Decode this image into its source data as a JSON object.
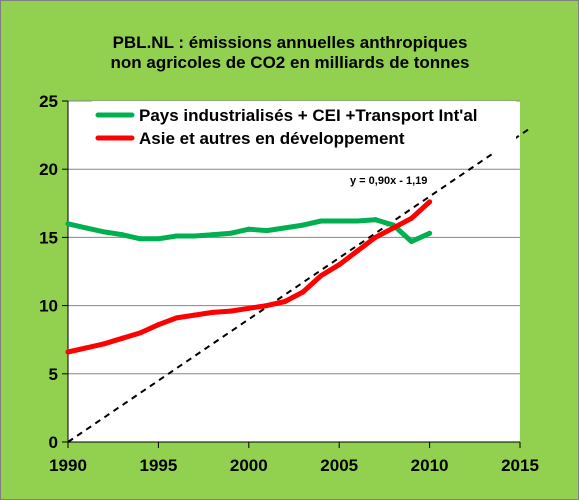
{
  "chart_data": {
    "type": "line",
    "title_lines": [
      "PBL.NL : émissions annuelles anthropiques",
      "non agricoles de CO2  en milliards de tonnes"
    ],
    "xlabel": "",
    "ylabel": "",
    "xlim": [
      1990,
      2015
    ],
    "ylim": [
      0,
      25
    ],
    "x_ticks": [
      1990,
      1995,
      2000,
      2005,
      2010,
      2015
    ],
    "y_ticks": [
      0,
      5,
      10,
      15,
      20,
      25
    ],
    "grid": "horizontal",
    "legend_position": "top",
    "series": [
      {
        "name": "Pays industrialisés + CEI +Transport Int'al",
        "color": "#00b050",
        "x": [
          1990,
          1991,
          1992,
          1993,
          1994,
          1995,
          1996,
          1997,
          1998,
          1999,
          2000,
          2001,
          2002,
          2003,
          2004,
          2005,
          2006,
          2007,
          2008,
          2009,
          2010
        ],
        "values": [
          16.0,
          15.7,
          15.4,
          15.2,
          14.9,
          14.9,
          15.1,
          15.1,
          15.2,
          15.3,
          15.6,
          15.5,
          15.7,
          15.9,
          16.2,
          16.2,
          16.2,
          16.3,
          15.9,
          14.7,
          15.3
        ]
      },
      {
        "name": "Asie et autres en développement",
        "color": "#ff0000",
        "x": [
          1990,
          1991,
          1992,
          1993,
          1994,
          1995,
          1996,
          1997,
          1998,
          1999,
          2000,
          2001,
          2002,
          2003,
          2004,
          2005,
          2006,
          2007,
          2008,
          2009,
          2010
        ],
        "values": [
          6.6,
          6.9,
          7.2,
          7.6,
          8.0,
          8.6,
          9.1,
          9.3,
          9.5,
          9.6,
          9.8,
          10.0,
          10.3,
          11.0,
          12.2,
          13.0,
          14.0,
          15.0,
          15.7,
          16.4,
          17.6
        ]
      }
    ],
    "trendline": {
      "label": "y = 0,90x  - 1,19",
      "color": "#000000",
      "style": "dashed",
      "x_range": [
        1990,
        2015.5
      ]
    }
  }
}
